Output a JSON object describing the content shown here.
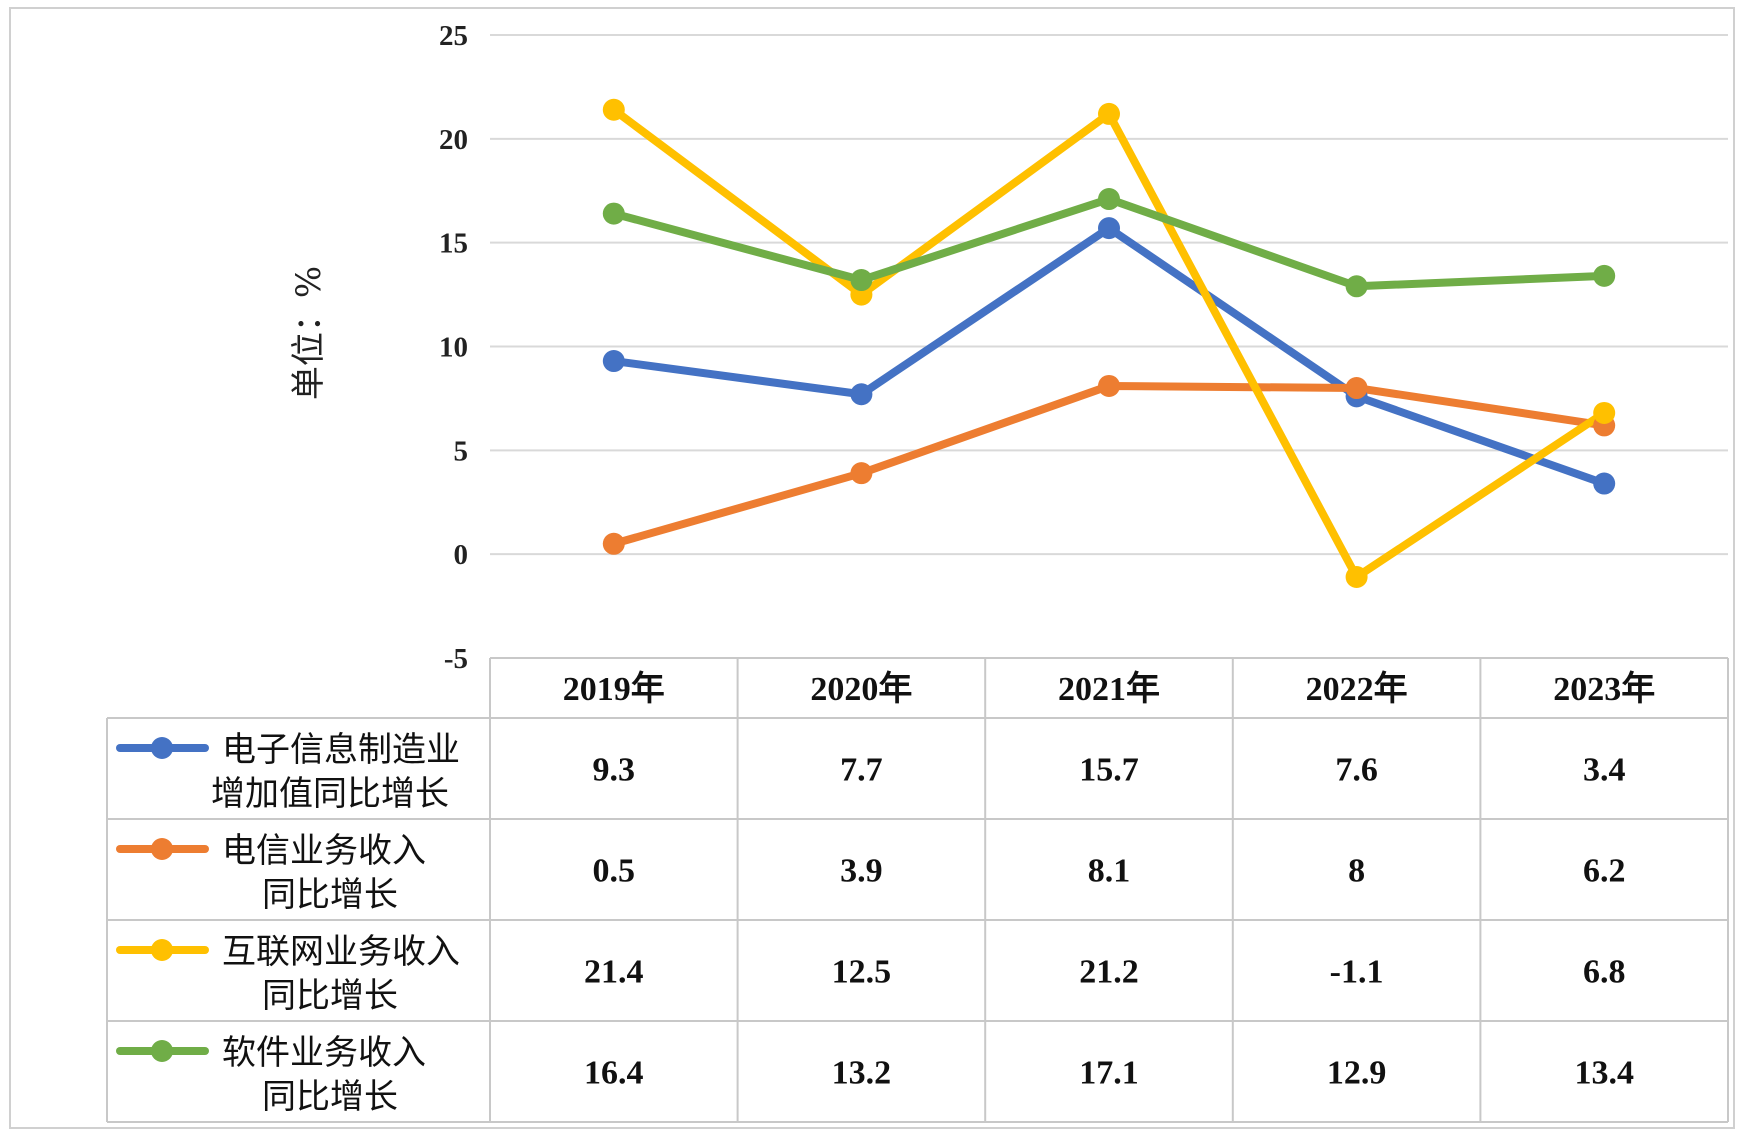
{
  "chart_data": {
    "type": "line",
    "categories": [
      "2019年",
      "2020年",
      "2021年",
      "2022年",
      "2023年"
    ],
    "ylabel": "单位：%",
    "ylim": [
      -5,
      25
    ],
    "yticks": [
      "25",
      "20",
      "15",
      "10",
      "5",
      "0",
      "-5"
    ],
    "ytick_values": [
      25,
      20,
      15,
      10,
      5,
      0,
      -5
    ],
    "grid": true,
    "legend": "data-table-below",
    "series": [
      {
        "name_lines": [
          "电子信息制造业",
          "增加值同比增长"
        ],
        "color": "#4472C4",
        "values": [
          9.3,
          7.7,
          15.7,
          7.6,
          3.4
        ],
        "labels": [
          "9.3",
          "7.7",
          "15.7",
          "7.6",
          "3.4"
        ]
      },
      {
        "name_lines": [
          "电信业务收入",
          "同比增长"
        ],
        "color": "#ED7D31",
        "values": [
          0.5,
          3.9,
          8.1,
          8,
          6.2
        ],
        "labels": [
          "0.5",
          "3.9",
          "8.1",
          "8",
          "6.2"
        ]
      },
      {
        "name_lines": [
          "互联网业务收入",
          "同比增长"
        ],
        "color": "#FFC000",
        "values": [
          21.4,
          12.5,
          21.2,
          -1.1,
          6.8
        ],
        "labels": [
          "21.4",
          "12.5",
          "21.2",
          "-1.1",
          "6.8"
        ]
      },
      {
        "name_lines": [
          "软件业务收入",
          "同比增长"
        ],
        "color": "#70AD47",
        "values": [
          16.4,
          13.2,
          17.1,
          12.9,
          13.4
        ],
        "labels": [
          "16.4",
          "13.2",
          "17.1",
          "12.9",
          "13.4"
        ]
      }
    ]
  }
}
